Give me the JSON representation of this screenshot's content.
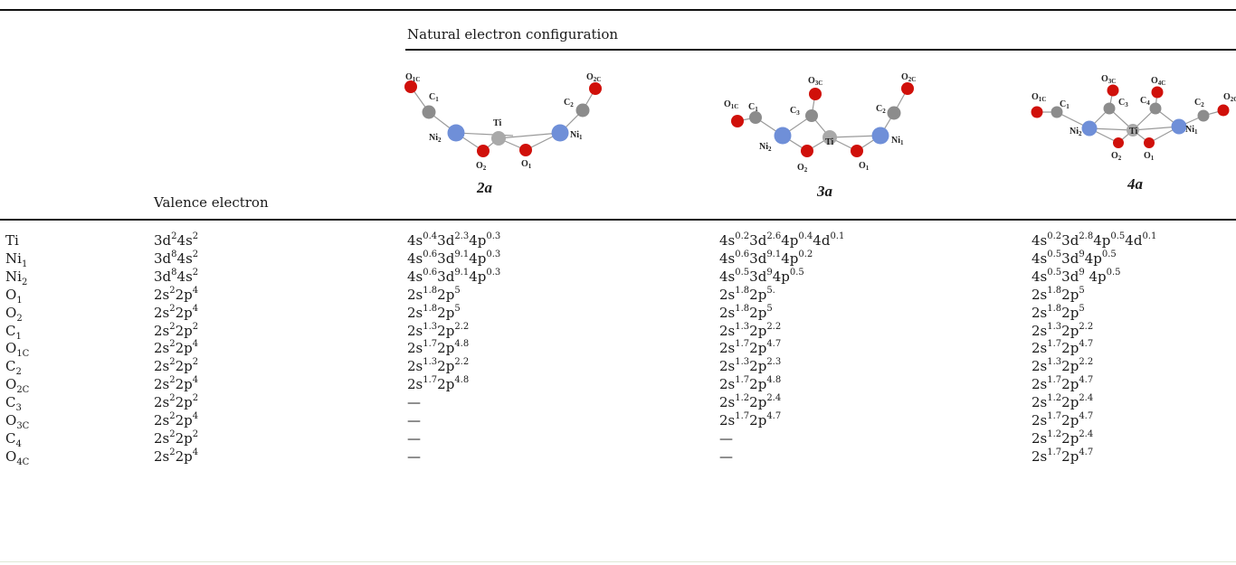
{
  "header": {
    "group_label": "Natural electron configuration",
    "valence_label": "Valence electron"
  },
  "molecules": [
    {
      "id": "2a",
      "label": "2a"
    },
    {
      "id": "3a",
      "label": "3a"
    },
    {
      "id": "4a",
      "label": "4a"
    }
  ],
  "atom_labels": {
    "O1C": "O1C",
    "O2C": "O2C",
    "O3C": "O3C",
    "O4C": "O4C",
    "C1": "C1",
    "C2": "C2",
    "C3": "C3",
    "C4": "C4",
    "Ni1": "Ni1",
    "Ni2": "Ni2",
    "Ti": "Ti",
    "O1": "O1",
    "O2": "O2"
  },
  "rows": [
    {
      "atom": "Ti",
      "atom_sub": "",
      "valence": "3d^2 4s^2",
      "c2a": "4s^0.4 3d^2.3 4p^0.3",
      "c3a": "4s^0.2 3d^2.6 4p^0.4 4d^0.1",
      "c4a": "4s^0.2 3d^2.8 4p^0.5 4d^0.1"
    },
    {
      "atom": "Ni",
      "atom_sub": "1",
      "valence": "3d^8 4s^2",
      "c2a": "4s^0.6 3d^9.1 4p^0.3",
      "c3a": "4s^0.6 3d^9.1 4p^0.2",
      "c4a": "4s^0.5 3d^9 4p^0.5"
    },
    {
      "atom": "Ni",
      "atom_sub": "2",
      "valence": "3d^8 4s^2",
      "c2a": "4s^0.6 3d^9.1 4p^0.3",
      "c3a": "4s^0.5 3d^9 4p^0.5",
      "c4a": "4s^0.5 3d^9 _4p^0.5"
    },
    {
      "atom": "O",
      "atom_sub": "1",
      "valence": "2s^2 2p^4",
      "c2a": "2s^1.8 2p^5",
      "c3a": "2s^1.8 2p^5.",
      "c4a": "2s^1.8 2p^5"
    },
    {
      "atom": "O",
      "atom_sub": "2",
      "valence": "2s^2 2p^4",
      "c2a": "2s^1.8 2p^5",
      "c3a": "2s^1.8 2p^5",
      "c4a": "2s^1.8 2p^5"
    },
    {
      "atom": "C",
      "atom_sub": "1",
      "valence": "2s^2 2p^2",
      "c2a": "2s^1.3 2p^2.2",
      "c3a": "2s^1.3 2p^2.2",
      "c4a": "2s^1.3 2p^2.2"
    },
    {
      "atom": "O",
      "atom_sub": "1C",
      "valence": "2s^2 2p^4",
      "c2a": "2s^1.7 2p^4.8",
      "c3a": "2s^1.7 2p^4.7",
      "c4a": "2s^1.7 2p^4.7"
    },
    {
      "atom": "C",
      "atom_sub": "2",
      "valence": "2s^2 2p^2",
      "c2a": "2s^1.3 2p^2.2",
      "c3a": "2s^1.3 2p^2.3",
      "c4a": "2s^1.3 2p^2.2"
    },
    {
      "atom": "O",
      "atom_sub": "2C",
      "valence": "2s^2 2p^4",
      "c2a": "2s^1.7 2p^4.8",
      "c3a": "2s^1.7 2p^4.8",
      "c4a": "2s^1.7 2p^4.7"
    },
    {
      "atom": "C",
      "atom_sub": "3",
      "valence": "2s^2 2p^2",
      "c2a": "—",
      "c3a": "2s^1.2 2p^2.4",
      "c4a": "2s^1.2 2p^2.4"
    },
    {
      "atom": "O",
      "atom_sub": "3C",
      "valence": "2s^2 2p^4",
      "c2a": "—",
      "c3a": "2s^1.7 2p^4.7",
      "c4a": "2s^1.7 2p^4.7"
    },
    {
      "atom": "C",
      "atom_sub": "4",
      "valence": "2s^2 2p^2",
      "c2a": "—",
      "c3a": "—",
      "c4a": "2s^1.2 2p^2.4"
    },
    {
      "atom": "O",
      "atom_sub": "4C",
      "valence": "2s^2 2p^4",
      "c2a": "—",
      "c3a": "—",
      "c4a": "2s^1.7 2p^4.7"
    }
  ],
  "colors": {
    "ni": "#6f8fd8",
    "ti": "#a9a9a9",
    "o": "#d0100a",
    "c": "#8c8c8c",
    "bond": "#9a9a9a"
  }
}
